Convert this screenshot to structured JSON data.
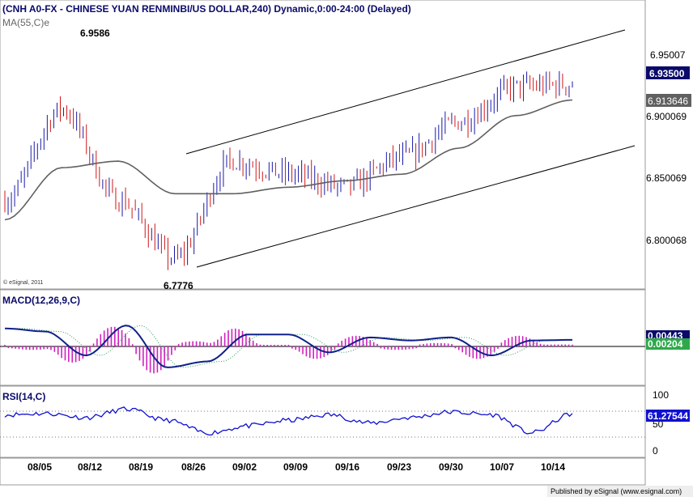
{
  "header": {
    "title": "(CNH A0-FX - CHINESE YUAN RENMINBI/US DOLLAR,240) Dynamic,0:00-24:00 (Delayed)",
    "ma_label": "MA(55,C)e"
  },
  "copyright": "© eSignal, 2011",
  "footer": "Published by eSignal (www.esignal.com)",
  "annotations": {
    "high": "6.9586",
    "low": "6.7776"
  },
  "price_axis": {
    "ticks": [
      "6.95007",
      "6.900069",
      "6.850069",
      "6.800068"
    ],
    "last_price": "6.93500",
    "ma_value": "6.913646"
  },
  "macd": {
    "label": "MACD(12,26,9,C)",
    "macd_value": "0.00443",
    "signal_value": "0.00204"
  },
  "rsi": {
    "label": "RSI(14,C)",
    "value": "61.27544",
    "ticks": [
      "100",
      "50",
      "0"
    ]
  },
  "x_ticks": [
    "08/05",
    "08/12",
    "08/19",
    "08/26",
    "09/02",
    "09/09",
    "09/16",
    "09/23",
    "09/30",
    "10/07",
    "10/14"
  ],
  "colors": {
    "up": "#1a1aa8",
    "down": "#d01818",
    "ma": "#606060",
    "macd": "#10208a",
    "hist": "#d020c0",
    "rsi": "#1010d0",
    "signal_box": "#2ea84a"
  },
  "chart_data": [
    {
      "type": "line",
      "title": "CNH A0-FX - CHINESE YUAN RENMINBI/US DOLLAR,240",
      "series": [
        {
          "name": "CNH A0-FX",
          "x": [
            "08/05",
            "08/12",
            "08/19",
            "08/26",
            "09/02",
            "09/09",
            "09/16",
            "09/23",
            "09/30",
            "10/07",
            "10/14"
          ],
          "values": [
            6.835,
            6.905,
            6.835,
            6.79,
            6.865,
            6.855,
            6.845,
            6.868,
            6.895,
            6.922,
            6.924
          ]
        },
        {
          "name": "MA(55,C)e",
          "x": [
            "08/05",
            "08/12",
            "08/19",
            "08/26",
            "09/02",
            "09/09",
            "09/16",
            "09/23",
            "09/30",
            "10/07",
            "10/14"
          ],
          "values": [
            6.82,
            6.86,
            6.865,
            6.84,
            6.84,
            6.845,
            6.85,
            6.855,
            6.875,
            6.9,
            6.912
          ]
        }
      ],
      "last_value": 6.935,
      "high": 6.9586,
      "low": 6.7776,
      "ylim": [
        6.77,
        6.985
      ]
    },
    {
      "type": "line",
      "title": "MACD(12,26,9,C)",
      "series": [
        {
          "name": "MACD",
          "values": [
            0.012,
            0.01,
            -0.006,
            0.014,
            -0.014,
            -0.01,
            0.008,
            0.008,
            -0.004,
            0.006,
            0.004,
            0.006,
            -0.006,
            0.004,
            0.0044
          ]
        }
      ],
      "macd_value": 0.00443,
      "signal_value": 0.00204
    },
    {
      "type": "line",
      "title": "RSI(14,C)",
      "series": [
        {
          "name": "RSI(14,C)",
          "values": [
            60,
            62,
            56,
            68,
            52,
            34,
            44,
            52,
            60,
            48,
            56,
            64,
            60,
            34,
            61.3
          ]
        }
      ],
      "last_value": 61.27544,
      "ylim": [
        0,
        100
      ]
    }
  ]
}
